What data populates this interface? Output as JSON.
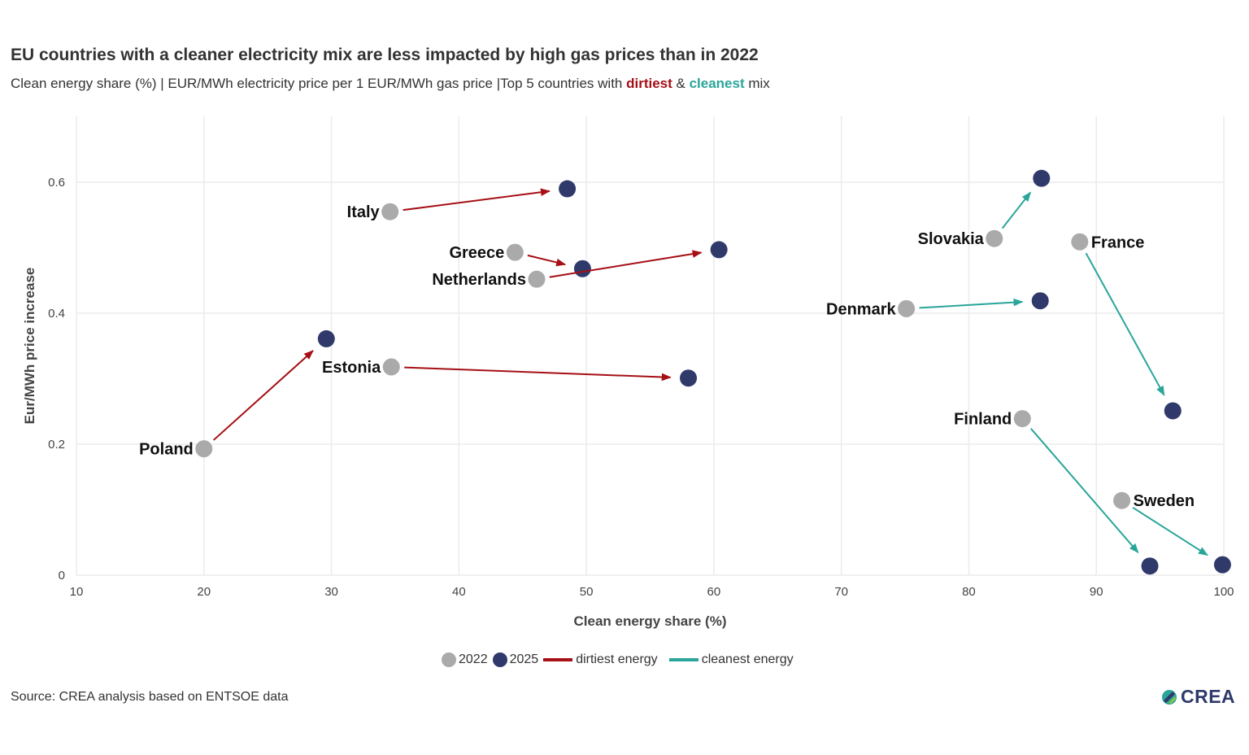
{
  "title": "EU countries with a cleaner electricity mix are less impacted by high gas prices than in 2022",
  "subtitle": {
    "prefix": "Clean energy share (%) | EUR/MWh electricity price per 1 EUR/MWh gas price |Top 5 countries with ",
    "dirtiest": "dirtiest",
    "amp": " & ",
    "cleanest": "cleanest",
    "suffix": " mix"
  },
  "source": "Source: CREA analysis based on ENTSOE data",
  "logo": "CREA",
  "colors": {
    "y2022": "#aaaaaa",
    "y2025": "#2f3a6b",
    "dirtiest": "#a50f15",
    "cleanest": "#2aa59a",
    "grid": "#ebebeb"
  },
  "legend": {
    "placement": "bottom",
    "items": [
      {
        "label": "2022",
        "type": "point",
        "color": "#aaaaaa"
      },
      {
        "label": "2025",
        "type": "point",
        "color": "#2f3a6b"
      },
      {
        "label": "dirtiest energy",
        "type": "line",
        "color": "#a50f15"
      },
      {
        "label": "cleanest energy",
        "type": "line",
        "color": "#2aa59a"
      }
    ]
  },
  "chart_data": {
    "type": "scatter",
    "xlabel": "Clean energy share (%)",
    "ylabel": "Eur/MWh price increase",
    "xlim": [
      10,
      100
    ],
    "ylim": [
      0,
      0.68
    ],
    "xticks": [
      10,
      20,
      30,
      40,
      50,
      60,
      70,
      80,
      90,
      100
    ],
    "yticks": [
      0,
      0.2,
      0.4,
      0.6
    ],
    "ytick_labels": [
      "0",
      "0.2",
      "0.4",
      "0.6"
    ],
    "grid": true,
    "countries": [
      {
        "name": "Poland",
        "group": "dirtiest",
        "label_position": "left",
        "x2022": 20.0,
        "y2022": 0.193,
        "x2025": 29.6,
        "y2025": 0.361
      },
      {
        "name": "Italy",
        "group": "dirtiest",
        "label_position": "left",
        "x2022": 34.6,
        "y2022": 0.555,
        "x2025": 48.5,
        "y2025": 0.59
      },
      {
        "name": "Greece",
        "group": "dirtiest",
        "label_position": "left",
        "x2022": 44.4,
        "y2022": 0.493,
        "x2025": 49.7,
        "y2025": 0.468
      },
      {
        "name": "Netherlands",
        "group": "dirtiest",
        "label_position": "left",
        "x2022": 46.1,
        "y2022": 0.452,
        "x2025": 60.4,
        "y2025": 0.497
      },
      {
        "name": "Estonia",
        "group": "dirtiest",
        "label_position": "left",
        "x2022": 34.7,
        "y2022": 0.318,
        "x2025": 58.0,
        "y2025": 0.301
      },
      {
        "name": "Slovakia",
        "group": "cleanest",
        "label_position": "left",
        "x2022": 82.0,
        "y2022": 0.514,
        "x2025": 85.7,
        "y2025": 0.606
      },
      {
        "name": "France",
        "group": "cleanest",
        "label_position": "right",
        "x2022": 88.7,
        "y2022": 0.509,
        "x2025": 96.0,
        "y2025": 0.251
      },
      {
        "name": "Denmark",
        "group": "cleanest",
        "label_position": "left",
        "x2022": 75.1,
        "y2022": 0.407,
        "x2025": 85.6,
        "y2025": 0.419
      },
      {
        "name": "Finland",
        "group": "cleanest",
        "label_position": "left",
        "x2022": 84.2,
        "y2022": 0.239,
        "x2025": 94.2,
        "y2025": 0.014
      },
      {
        "name": "Sweden",
        "group": "cleanest",
        "label_position": "right",
        "x2022": 92.0,
        "y2022": 0.114,
        "x2025": 99.9,
        "y2025": 0.016
      }
    ]
  }
}
